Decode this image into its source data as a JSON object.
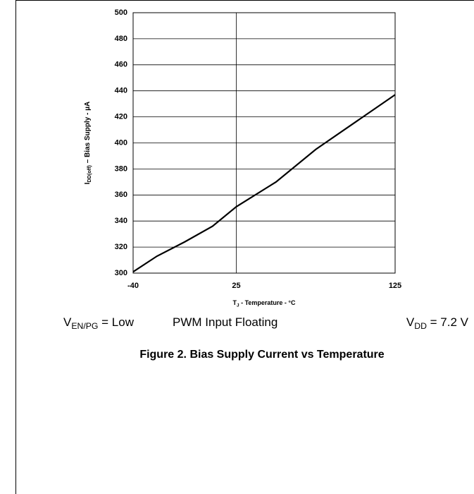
{
  "chart_data": {
    "type": "line",
    "title": "Figure 2. Bias Supply Current vs Temperature",
    "y_label": {
      "main": "I",
      "sub": "DD(off)",
      "rest": " – Bias Supply - µA"
    },
    "x_label": {
      "main": "T",
      "sub": "J",
      "rest": " - Temperature - °C"
    },
    "annotations": [
      {
        "main": "V",
        "sub": "EN/PG",
        "rest": " = Low"
      },
      {
        "main": "PWM Input Floating"
      },
      {
        "main": "V",
        "sub": "DD",
        "rest": " = 7.2 V"
      }
    ],
    "x": [
      -40,
      -25,
      -7.5,
      10,
      25,
      50,
      75,
      125
    ],
    "series": [
      {
        "color": "#000000",
        "values": [
          301,
          313,
          324,
          336,
          351,
          370,
          395,
          437
        ]
      }
    ],
    "xlim": [
      -40,
      125
    ],
    "xticks": [
      -40,
      25,
      125
    ],
    "ylim": [
      300,
      500
    ],
    "yticks": [
      300,
      320,
      340,
      360,
      380,
      400,
      420,
      440,
      460,
      480,
      500
    ],
    "grid": true
  }
}
